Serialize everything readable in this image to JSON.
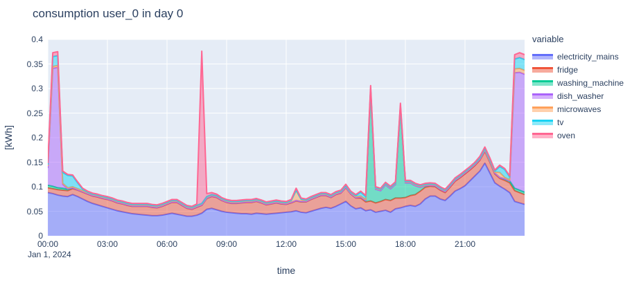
{
  "title": "consumption user_0 in day 0",
  "xaxis_title": "time",
  "yaxis_title": "[kWh]",
  "date_label": "Jan 1, 2024",
  "legend_title": "variable",
  "plot_bgcolor": "#E5ECF6",
  "grid_color": "#FFFFFF",
  "text_color": "#2a3f5f",
  "chart_data": {
    "type": "area",
    "stacked": true,
    "title": "consumption user_0 in day 0",
    "xlabel": "time",
    "ylabel": "[kWh]",
    "x_start_hour": 0,
    "x_end_hour": 24,
    "x_step_minutes": 15,
    "x_date": "Jan 1, 2024",
    "ylim": [
      0,
      0.4
    ],
    "grid": true,
    "legend_position": "right",
    "legend_title": "variable",
    "yticks": {
      "values": [
        0,
        0.05,
        0.1,
        0.15,
        0.2,
        0.25,
        0.3,
        0.35,
        0.4
      ],
      "labels": [
        "0",
        "0.05",
        "0.1",
        "0.15",
        "0.2",
        "0.25",
        "0.3",
        "0.35",
        "0.4"
      ]
    },
    "xticks": {
      "hours": [
        0,
        3,
        6,
        9,
        12,
        15,
        18,
        21
      ],
      "labels": [
        "00:00",
        "03:00",
        "06:00",
        "09:00",
        "12:00",
        "15:00",
        "18:00",
        "21:00"
      ]
    },
    "fill_alpha": 0.5,
    "series": [
      {
        "name": "electricity_mains",
        "color": "#636EFA",
        "values": [
          0.088,
          0.086,
          0.083,
          0.081,
          0.08,
          0.084,
          0.08,
          0.075,
          0.07,
          0.066,
          0.063,
          0.06,
          0.057,
          0.054,
          0.051,
          0.049,
          0.047,
          0.045,
          0.044,
          0.043,
          0.042,
          0.041,
          0.041,
          0.042,
          0.044,
          0.046,
          0.044,
          0.042,
          0.04,
          0.04,
          0.042,
          0.046,
          0.054,
          0.056,
          0.053,
          0.05,
          0.048,
          0.047,
          0.046,
          0.045,
          0.045,
          0.044,
          0.046,
          0.045,
          0.044,
          0.045,
          0.046,
          0.047,
          0.048,
          0.049,
          0.051,
          0.048,
          0.047,
          0.05,
          0.053,
          0.056,
          0.058,
          0.056,
          0.06,
          0.065,
          0.07,
          0.061,
          0.055,
          0.057,
          0.051,
          0.053,
          0.048,
          0.05,
          0.052,
          0.048,
          0.055,
          0.057,
          0.06,
          0.062,
          0.06,
          0.065,
          0.075,
          0.081,
          0.081,
          0.075,
          0.072,
          0.081,
          0.091,
          0.096,
          0.102,
          0.112,
          0.122,
          0.132,
          0.148,
          0.128,
          0.108,
          0.101,
          0.095,
          0.088,
          0.07,
          0.067,
          0.064
        ]
      },
      {
        "name": "fridge",
        "color": "#EF553B",
        "values": [
          0.01,
          0.01,
          0.011,
          0.012,
          0.012,
          0.012,
          0.013,
          0.014,
          0.015,
          0.015,
          0.016,
          0.016,
          0.017,
          0.017,
          0.016,
          0.016,
          0.015,
          0.015,
          0.016,
          0.017,
          0.018,
          0.017,
          0.016,
          0.018,
          0.02,
          0.022,
          0.024,
          0.02,
          0.016,
          0.014,
          0.016,
          0.016,
          0.022,
          0.024,
          0.025,
          0.022,
          0.02,
          0.019,
          0.02,
          0.022,
          0.023,
          0.024,
          0.024,
          0.022,
          0.019,
          0.02,
          0.021,
          0.018,
          0.016,
          0.018,
          0.02,
          0.021,
          0.022,
          0.024,
          0.025,
          0.026,
          0.024,
          0.022,
          0.024,
          0.022,
          0.028,
          0.024,
          0.022,
          0.02,
          0.018,
          0.018,
          0.019,
          0.02,
          0.022,
          0.024,
          0.022,
          0.02,
          0.018,
          0.02,
          0.024,
          0.026,
          0.024,
          0.02,
          0.019,
          0.018,
          0.016,
          0.018,
          0.02,
          0.022,
          0.024,
          0.022,
          0.021,
          0.022,
          0.024,
          0.022,
          0.018,
          0.016,
          0.018,
          0.02,
          0.022,
          0.021,
          0.02
        ]
      },
      {
        "name": "washing_machine",
        "color": "#00CC96",
        "values": [
          0.005,
          0.005,
          0.004,
          0.004,
          0.003,
          0.002,
          0.001,
          0.001,
          0.001,
          0.001,
          0.001,
          0.001,
          0.001,
          0.001,
          0.001,
          0.001,
          0.001,
          0.001,
          0.001,
          0.001,
          0.001,
          0.001,
          0.001,
          0.001,
          0.001,
          0.001,
          0.001,
          0.001,
          0.001,
          0.001,
          0.001,
          0.001,
          0.001,
          0.001,
          0.001,
          0.001,
          0.001,
          0.001,
          0.001,
          0.001,
          0.001,
          0.001,
          0.001,
          0.001,
          0.001,
          0.001,
          0.001,
          0.001,
          0.001,
          0.001,
          0.001,
          0.001,
          0.001,
          0.001,
          0.001,
          0.001,
          0.001,
          0.001,
          0.001,
          0.001,
          0.001,
          0.001,
          0.001,
          0.002,
          0.003,
          0.225,
          0.028,
          0.022,
          0.03,
          0.024,
          0.028,
          0.185,
          0.03,
          0.026,
          0.018,
          0.008,
          0.003,
          0.002,
          0.002,
          0.002,
          0.002,
          0.002,
          0.002,
          0.002,
          0.002,
          0.002,
          0.002,
          0.002,
          0.002,
          0.002,
          0.002,
          0.002,
          0.003,
          0.004,
          0.005,
          0.005,
          0.005
        ]
      },
      {
        "name": "dish_washer",
        "color": "#AB63FA",
        "values": [
          0.035,
          0.24,
          0.245,
          0.008,
          0.001,
          0,
          0,
          0,
          0,
          0,
          0,
          0,
          0,
          0,
          0,
          0,
          0,
          0,
          0,
          0,
          0,
          0,
          0,
          0,
          0,
          0,
          0,
          0,
          0,
          0,
          0,
          0,
          0,
          0,
          0,
          0,
          0,
          0,
          0,
          0,
          0,
          0,
          0,
          0,
          0,
          0,
          0,
          0,
          0,
          0,
          0,
          0,
          0,
          0,
          0,
          0,
          0,
          0,
          0,
          0,
          0,
          0,
          0,
          0,
          0,
          0,
          0,
          0,
          0,
          0,
          0,
          0,
          0,
          0,
          0,
          0,
          0,
          0,
          0,
          0,
          0,
          0,
          0,
          0,
          0,
          0,
          0,
          0,
          0,
          0,
          0,
          0,
          0,
          0,
          0.235,
          0.24,
          0.24
        ]
      },
      {
        "name": "microwaves",
        "color": "#FFA15A",
        "values": [
          0.004,
          0.004,
          0.004,
          0.002,
          0.002,
          0.002,
          0.002,
          0.002,
          0.002,
          0.002,
          0.002,
          0.002,
          0.002,
          0.002,
          0.002,
          0.002,
          0.002,
          0.002,
          0.002,
          0.002,
          0.002,
          0.002,
          0.002,
          0.002,
          0.002,
          0.002,
          0.002,
          0.002,
          0.002,
          0.002,
          0.002,
          0.002,
          0.002,
          0.002,
          0.002,
          0.002,
          0.002,
          0.002,
          0.002,
          0.002,
          0.002,
          0.002,
          0.002,
          0.002,
          0.002,
          0.002,
          0.002,
          0.002,
          0.002,
          0.003,
          0.02,
          0.004,
          0.002,
          0.002,
          0.002,
          0.002,
          0.002,
          0.002,
          0.002,
          0.002,
          0.002,
          0.002,
          0.002,
          0.002,
          0.002,
          0.002,
          0.002,
          0.002,
          0.002,
          0.002,
          0.002,
          0.002,
          0.002,
          0.002,
          0.002,
          0.002,
          0.002,
          0.002,
          0.002,
          0.002,
          0.002,
          0.002,
          0.002,
          0.002,
          0.002,
          0.002,
          0.002,
          0.002,
          0.002,
          0.002,
          0.002,
          0.01,
          0.003,
          0.002,
          0.008,
          0.008,
          0.008
        ]
      },
      {
        "name": "tv",
        "color": "#19D3F3",
        "values": [
          0.003,
          0.02,
          0.02,
          0.022,
          0.025,
          0.022,
          0.012,
          0.003,
          0.001,
          0.001,
          0.001,
          0.001,
          0.001,
          0.001,
          0.001,
          0.001,
          0.001,
          0.001,
          0.001,
          0.001,
          0.001,
          0.001,
          0.001,
          0.001,
          0.001,
          0.001,
          0.001,
          0.001,
          0.001,
          0.001,
          0.001,
          0.001,
          0.001,
          0.001,
          0.001,
          0.001,
          0.001,
          0.001,
          0.001,
          0.001,
          0.001,
          0.001,
          0.001,
          0.001,
          0.001,
          0.001,
          0.001,
          0.001,
          0.001,
          0.001,
          0.001,
          0.001,
          0.001,
          0.001,
          0.001,
          0.001,
          0.001,
          0.001,
          0.001,
          0.001,
          0.001,
          0.001,
          0.002,
          0.008,
          0.006,
          0.002,
          0.001,
          0.001,
          0.001,
          0.001,
          0.001,
          0.001,
          0.001,
          0.001,
          0.001,
          0.001,
          0.001,
          0.001,
          0.001,
          0.001,
          0.001,
          0.001,
          0.001,
          0.001,
          0.001,
          0.001,
          0.001,
          0.001,
          0.002,
          0.002,
          0.002,
          0.012,
          0.016,
          0.006,
          0.02,
          0.022,
          0.022
        ]
      },
      {
        "name": "oven",
        "color": "#FF6692",
        "values": [
          0.003,
          0.008,
          0.008,
          0.003,
          0.002,
          0.002,
          0.002,
          0.002,
          0.002,
          0.002,
          0.002,
          0.002,
          0.002,
          0.002,
          0.002,
          0.002,
          0.002,
          0.002,
          0.002,
          0.002,
          0.002,
          0.002,
          0.002,
          0.002,
          0.002,
          0.002,
          0.002,
          0.002,
          0.002,
          0.002,
          0.003,
          0.31,
          0.006,
          0.004,
          0.003,
          0.002,
          0.002,
          0.002,
          0.002,
          0.002,
          0.002,
          0.002,
          0.002,
          0.002,
          0.002,
          0.002,
          0.002,
          0.002,
          0.002,
          0.002,
          0.004,
          0.002,
          0.002,
          0.002,
          0.002,
          0.002,
          0.002,
          0.002,
          0.002,
          0.002,
          0.003,
          0.002,
          0.002,
          0.002,
          0.002,
          0.006,
          0.002,
          0.002,
          0.002,
          0.002,
          0.002,
          0.005,
          0.002,
          0.002,
          0.002,
          0.002,
          0.002,
          0.002,
          0.002,
          0.002,
          0.002,
          0.002,
          0.002,
          0.002,
          0.002,
          0.002,
          0.002,
          0.003,
          0.003,
          0.003,
          0.002,
          0.003,
          0.002,
          0.002,
          0.009,
          0.01,
          0.01
        ]
      }
    ]
  }
}
